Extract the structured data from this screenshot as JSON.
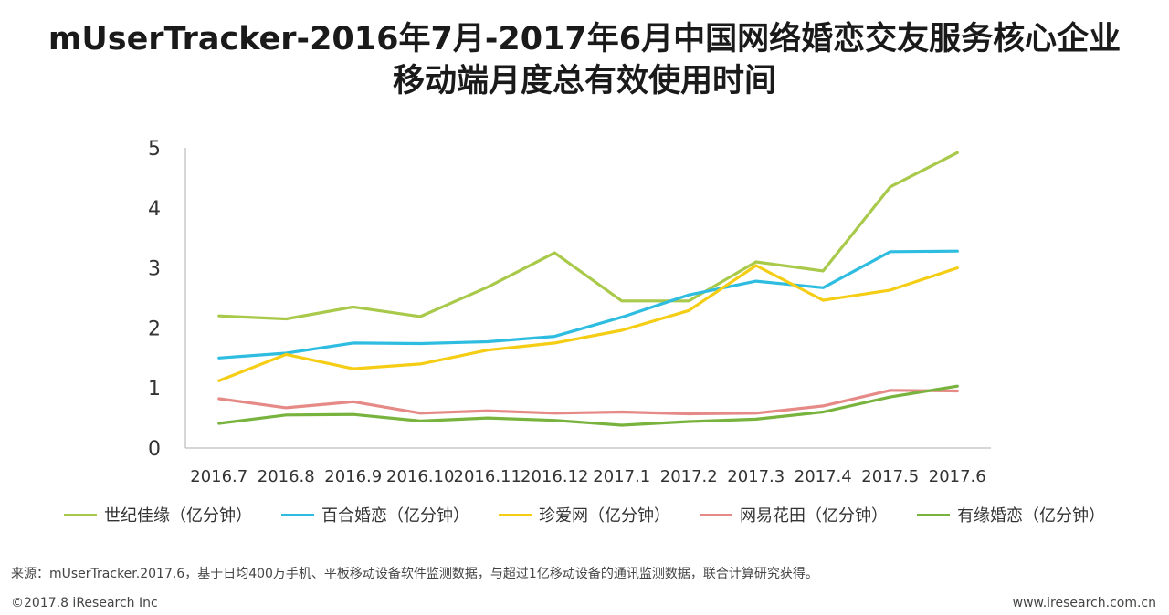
{
  "title_line1": "mUserTracker-2016年7月-2017年6月中国网络婚恋交友服务核心企业",
  "title_line2": "移动端月度总有效使用时间",
  "chart_data": {
    "type": "line",
    "categories": [
      "2016.7",
      "2016.8",
      "2016.9",
      "2016.10",
      "2016.11",
      "2016.12",
      "2017.1",
      "2017.2",
      "2017.3",
      "2017.4",
      "2017.5",
      "2017.6"
    ],
    "ylim": [
      0,
      5
    ],
    "yticks": [
      "0",
      "1",
      "2",
      "3",
      "4",
      "5"
    ],
    "grid": false,
    "legend_position": "bottom",
    "series": [
      {
        "name": "世纪佳缘（亿分钟）",
        "color": "#a8c94a",
        "values": [
          2.2,
          2.15,
          2.35,
          2.19,
          2.68,
          3.25,
          2.45,
          2.45,
          3.1,
          2.95,
          4.35,
          4.92
        ]
      },
      {
        "name": "百合婚恋（亿分钟）",
        "color": "#2ebde0",
        "values": [
          1.5,
          1.58,
          1.75,
          1.74,
          1.77,
          1.86,
          2.18,
          2.55,
          2.78,
          2.67,
          3.27,
          3.28
        ]
      },
      {
        "name": "珍爱网（亿分钟）",
        "color": "#f4cd14",
        "values": [
          1.12,
          1.56,
          1.32,
          1.4,
          1.63,
          1.75,
          1.96,
          2.29,
          3.04,
          2.46,
          2.63,
          3.0
        ]
      },
      {
        "name": "网易花田（亿分钟）",
        "color": "#e58a86",
        "values": [
          0.82,
          0.67,
          0.77,
          0.58,
          0.62,
          0.58,
          0.6,
          0.57,
          0.58,
          0.7,
          0.96,
          0.95
        ]
      },
      {
        "name": "有缘婚恋（亿分钟）",
        "color": "#78b33e",
        "values": [
          0.41,
          0.55,
          0.56,
          0.45,
          0.5,
          0.46,
          0.38,
          0.44,
          0.48,
          0.6,
          0.85,
          1.03
        ]
      }
    ]
  },
  "source": "来源：mUserTracker.2017.6，基于日均400万手机、平板移动设备软件监测数据，与超过1亿移动设备的通讯监测数据，联合计算研究获得。",
  "copyright": "©2017.8 iResearch Inc",
  "website": "www.iresearch.com.cn"
}
